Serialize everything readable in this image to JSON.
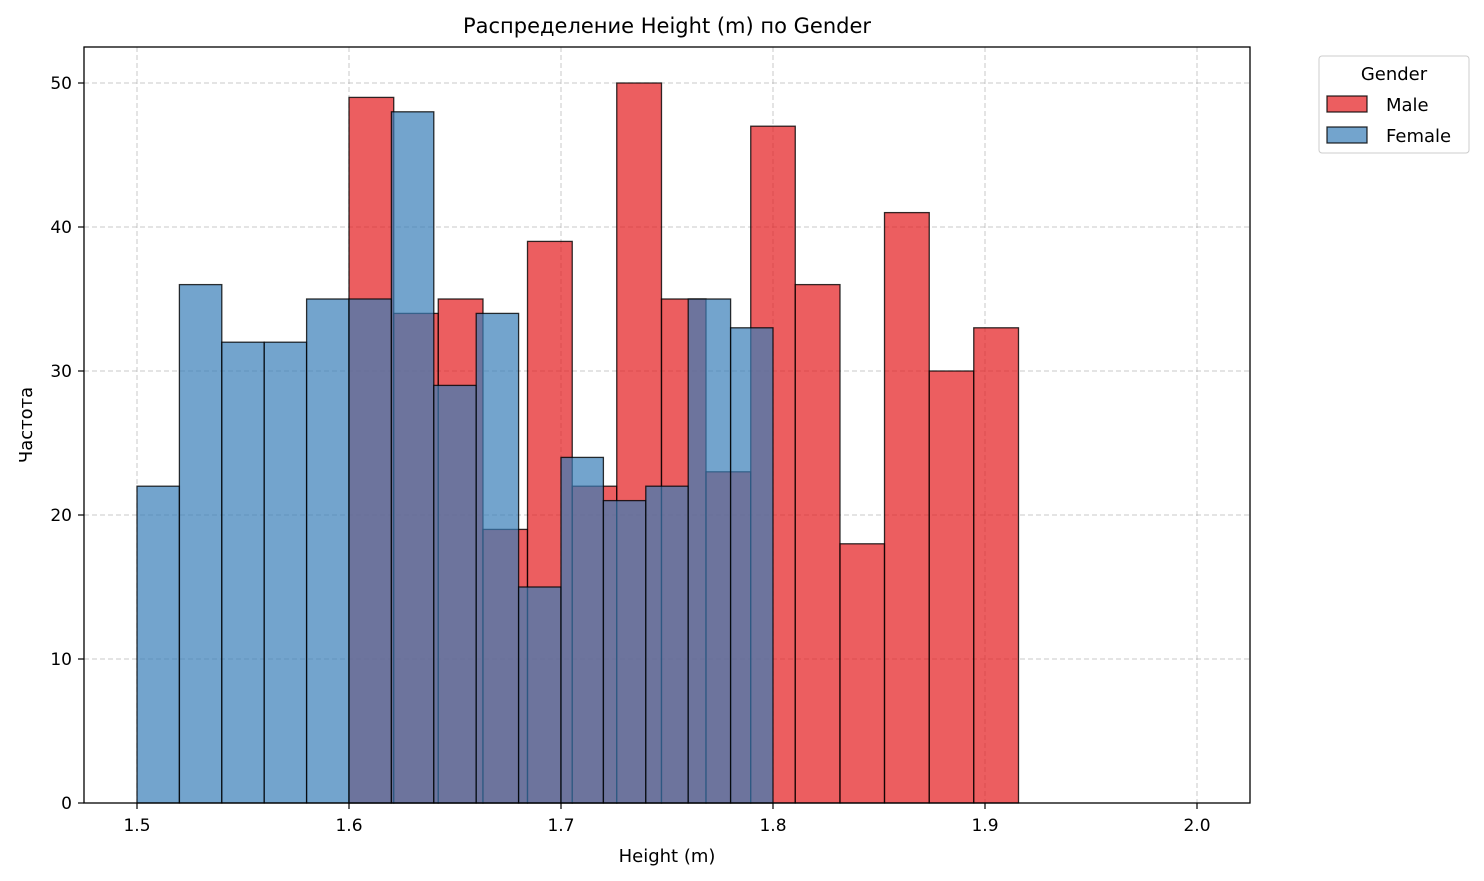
{
  "chart_data": {
    "type": "bar",
    "title": "Распределение Height (m) по Gender",
    "xlabel": "Height (m)",
    "ylabel": "Частота",
    "xlim": [
      1.475,
      2.025
    ],
    "ylim": [
      0,
      52.5
    ],
    "xticks": [
      "1.5",
      "1.6",
      "1.7",
      "1.8",
      "1.9",
      "2.0"
    ],
    "yticks": [
      "0",
      "10",
      "20",
      "30",
      "40",
      "50"
    ],
    "grid": true,
    "legend": {
      "title": "Gender",
      "placement": "outside-top-right"
    },
    "series": [
      {
        "name": "Male",
        "color": "#e41a1c",
        "bin_edges": [
          1.6,
          1.6211,
          1.6421,
          1.6632,
          1.6842,
          1.7053,
          1.7263,
          1.7474,
          1.7684,
          1.7895,
          1.8105,
          1.8316,
          1.8526,
          1.8737,
          1.8947,
          1.9158,
          1.9368,
          1.9579,
          1.9789,
          2.0
        ],
        "values": [
          49,
          34,
          35,
          19,
          39,
          22,
          50,
          35,
          23,
          47,
          36,
          18,
          41,
          30,
          33,
          0,
          0,
          0,
          0
        ]
      },
      {
        "name": "Female",
        "color": "#377eb8",
        "bin_edges": [
          1.5,
          1.52,
          1.54,
          1.56,
          1.58,
          1.6,
          1.62,
          1.64,
          1.66,
          1.68,
          1.7,
          1.72,
          1.74,
          1.76,
          1.78,
          1.8
        ],
        "values": [
          22,
          36,
          32,
          32,
          35,
          35,
          48,
          29,
          34,
          15,
          24,
          21,
          22,
          35,
          33
        ]
      }
    ]
  }
}
